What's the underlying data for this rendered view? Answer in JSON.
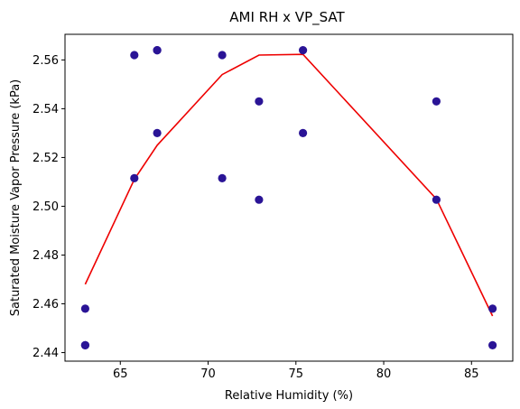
{
  "chart_data": {
    "type": "scatter",
    "title": "AMI RH x VP_SAT",
    "xlabel": "Relative Humidity (%)",
    "ylabel": "Saturated Moisture Vapor Pressure (kPa)",
    "xlim": [
      61.85,
      87.35
    ],
    "ylim": [
      2.4365,
      2.5705
    ],
    "xticks": [
      65,
      70,
      75,
      80,
      85
    ],
    "yticks": [
      2.44,
      2.46,
      2.48,
      2.5,
      2.52,
      2.54,
      2.56
    ],
    "grid": false,
    "legend": "none",
    "series": [
      {
        "kind": "scatter",
        "color": "#2a1496",
        "points": [
          [
            63.0,
            2.458
          ],
          [
            63.0,
            2.443
          ],
          [
            63.0,
            2.443
          ],
          [
            65.8,
            2.562
          ],
          [
            65.8,
            2.5115
          ],
          [
            67.1,
            2.564
          ],
          [
            67.1,
            2.564
          ],
          [
            67.1,
            2.53
          ],
          [
            70.8,
            2.562
          ],
          [
            70.8,
            2.5115
          ],
          [
            72.9,
            2.543
          ],
          [
            72.9,
            2.5027
          ],
          [
            75.4,
            2.564
          ],
          [
            75.4,
            2.53
          ],
          [
            83.0,
            2.543
          ],
          [
            83.0,
            2.5027
          ],
          [
            86.2,
            2.458
          ],
          [
            86.2,
            2.443
          ]
        ]
      },
      {
        "kind": "line",
        "color": "#ee0000",
        "points": [
          [
            63.0,
            2.468
          ],
          [
            65.8,
            2.511
          ],
          [
            67.1,
            2.525
          ],
          [
            70.8,
            2.554
          ],
          [
            72.9,
            2.562
          ],
          [
            75.4,
            2.5623
          ],
          [
            83.0,
            2.503
          ],
          [
            86.2,
            2.455
          ]
        ]
      }
    ]
  }
}
